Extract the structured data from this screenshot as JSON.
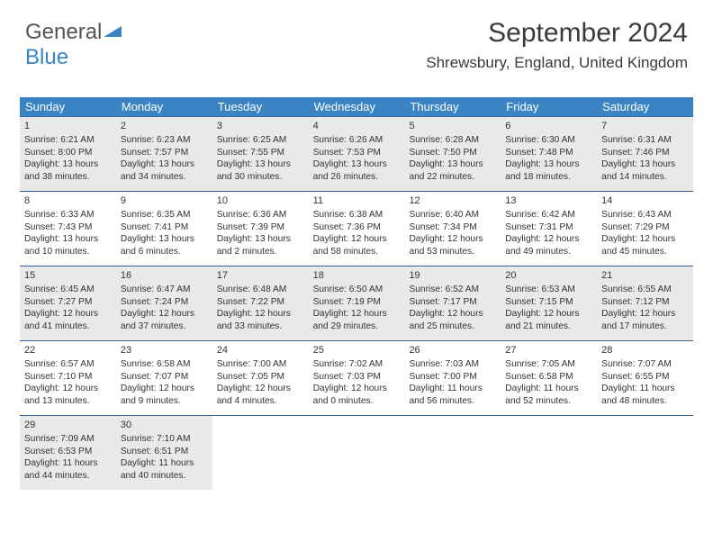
{
  "logo": {
    "part1": "General",
    "part2": "Blue"
  },
  "header": {
    "month_title": "September 2024",
    "location": "Shrewsbury, England, United Kingdom"
  },
  "colors": {
    "header_blue": "#3a84c4",
    "row_border": "#3565a0",
    "shade_bg": "#e9e9e9",
    "text": "#333333",
    "logo_gray": "#545454"
  },
  "day_names": [
    "Sunday",
    "Monday",
    "Tuesday",
    "Wednesday",
    "Thursday",
    "Friday",
    "Saturday"
  ],
  "weeks": [
    {
      "shaded": true,
      "days": [
        {
          "n": "1",
          "sr": "6:21 AM",
          "ss": "8:00 PM",
          "dl": "13 hours and 38 minutes."
        },
        {
          "n": "2",
          "sr": "6:23 AM",
          "ss": "7:57 PM",
          "dl": "13 hours and 34 minutes."
        },
        {
          "n": "3",
          "sr": "6:25 AM",
          "ss": "7:55 PM",
          "dl": "13 hours and 30 minutes."
        },
        {
          "n": "4",
          "sr": "6:26 AM",
          "ss": "7:53 PM",
          "dl": "13 hours and 26 minutes."
        },
        {
          "n": "5",
          "sr": "6:28 AM",
          "ss": "7:50 PM",
          "dl": "13 hours and 22 minutes."
        },
        {
          "n": "6",
          "sr": "6:30 AM",
          "ss": "7:48 PM",
          "dl": "13 hours and 18 minutes."
        },
        {
          "n": "7",
          "sr": "6:31 AM",
          "ss": "7:46 PM",
          "dl": "13 hours and 14 minutes."
        }
      ]
    },
    {
      "shaded": false,
      "days": [
        {
          "n": "8",
          "sr": "6:33 AM",
          "ss": "7:43 PM",
          "dl": "13 hours and 10 minutes."
        },
        {
          "n": "9",
          "sr": "6:35 AM",
          "ss": "7:41 PM",
          "dl": "13 hours and 6 minutes."
        },
        {
          "n": "10",
          "sr": "6:36 AM",
          "ss": "7:39 PM",
          "dl": "13 hours and 2 minutes."
        },
        {
          "n": "11",
          "sr": "6:38 AM",
          "ss": "7:36 PM",
          "dl": "12 hours and 58 minutes."
        },
        {
          "n": "12",
          "sr": "6:40 AM",
          "ss": "7:34 PM",
          "dl": "12 hours and 53 minutes."
        },
        {
          "n": "13",
          "sr": "6:42 AM",
          "ss": "7:31 PM",
          "dl": "12 hours and 49 minutes."
        },
        {
          "n": "14",
          "sr": "6:43 AM",
          "ss": "7:29 PM",
          "dl": "12 hours and 45 minutes."
        }
      ]
    },
    {
      "shaded": true,
      "days": [
        {
          "n": "15",
          "sr": "6:45 AM",
          "ss": "7:27 PM",
          "dl": "12 hours and 41 minutes."
        },
        {
          "n": "16",
          "sr": "6:47 AM",
          "ss": "7:24 PM",
          "dl": "12 hours and 37 minutes."
        },
        {
          "n": "17",
          "sr": "6:48 AM",
          "ss": "7:22 PM",
          "dl": "12 hours and 33 minutes."
        },
        {
          "n": "18",
          "sr": "6:50 AM",
          "ss": "7:19 PM",
          "dl": "12 hours and 29 minutes."
        },
        {
          "n": "19",
          "sr": "6:52 AM",
          "ss": "7:17 PM",
          "dl": "12 hours and 25 minutes."
        },
        {
          "n": "20",
          "sr": "6:53 AM",
          "ss": "7:15 PM",
          "dl": "12 hours and 21 minutes."
        },
        {
          "n": "21",
          "sr": "6:55 AM",
          "ss": "7:12 PM",
          "dl": "12 hours and 17 minutes."
        }
      ]
    },
    {
      "shaded": false,
      "days": [
        {
          "n": "22",
          "sr": "6:57 AM",
          "ss": "7:10 PM",
          "dl": "12 hours and 13 minutes."
        },
        {
          "n": "23",
          "sr": "6:58 AM",
          "ss": "7:07 PM",
          "dl": "12 hours and 9 minutes."
        },
        {
          "n": "24",
          "sr": "7:00 AM",
          "ss": "7:05 PM",
          "dl": "12 hours and 4 minutes."
        },
        {
          "n": "25",
          "sr": "7:02 AM",
          "ss": "7:03 PM",
          "dl": "12 hours and 0 minutes."
        },
        {
          "n": "26",
          "sr": "7:03 AM",
          "ss": "7:00 PM",
          "dl": "11 hours and 56 minutes."
        },
        {
          "n": "27",
          "sr": "7:05 AM",
          "ss": "6:58 PM",
          "dl": "11 hours and 52 minutes."
        },
        {
          "n": "28",
          "sr": "7:07 AM",
          "ss": "6:55 PM",
          "dl": "11 hours and 48 minutes."
        }
      ]
    },
    {
      "shaded": true,
      "days": [
        {
          "n": "29",
          "sr": "7:09 AM",
          "ss": "6:53 PM",
          "dl": "11 hours and 44 minutes."
        },
        {
          "n": "30",
          "sr": "7:10 AM",
          "ss": "6:51 PM",
          "dl": "11 hours and 40 minutes."
        },
        {
          "empty": true
        },
        {
          "empty": true
        },
        {
          "empty": true
        },
        {
          "empty": true
        },
        {
          "empty": true
        }
      ]
    }
  ],
  "labels": {
    "sunrise": "Sunrise: ",
    "sunset": "Sunset: ",
    "daylight": "Daylight: "
  }
}
